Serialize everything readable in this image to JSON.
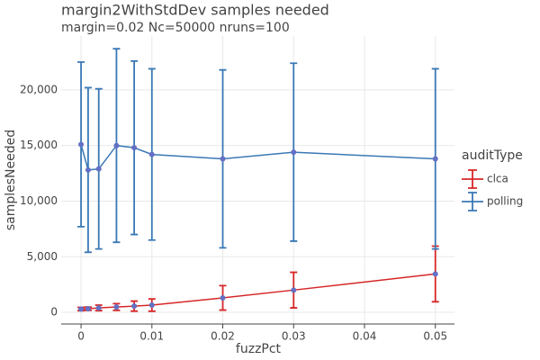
{
  "chart_data": {
    "type": "line",
    "title": "margin2WithStdDev samples needed",
    "subtitle": "margin=0.02 Nc=50000 nruns=100",
    "x_label": "fuzzPct",
    "y_label": "samplesNeeded",
    "legend_title": "auditType",
    "legend_position": "right",
    "x": [
      0,
      0.001,
      0.0025,
      0.005,
      0.0075,
      0.01,
      0.02,
      0.03,
      0.05
    ],
    "series": [
      {
        "name": "clca",
        "color": "#d62728",
        "values": [
          300,
          330,
          400,
          480,
          560,
          650,
          1300,
          2000,
          3450
        ],
        "errors": [
          150,
          150,
          250,
          300,
          450,
          550,
          1100,
          1600,
          2500
        ]
      },
      {
        "name": "polling",
        "color": "#3a78b5",
        "values": [
          15100,
          12800,
          12900,
          15000,
          14800,
          14200,
          13800,
          14400,
          13800
        ],
        "errors": [
          7400,
          7400,
          7200,
          8700,
          7800,
          7700,
          8000,
          8000,
          8100
        ]
      }
    ],
    "marker_color": "#6470c4",
    "xlim": [
      -0.0028,
      0.0527
    ],
    "ylim": [
      -1050,
      24850
    ],
    "xticks": [
      0,
      0.01,
      0.02,
      0.03,
      0.04,
      0.05
    ],
    "yticks": [
      0,
      {
        "value": 5000,
        "label": "5,000"
      },
      {
        "value": 10000,
        "label": "10,000"
      },
      {
        "value": 15000,
        "label": "15,000"
      },
      {
        "value": 20000,
        "label": "20,000"
      }
    ],
    "grid": true
  }
}
